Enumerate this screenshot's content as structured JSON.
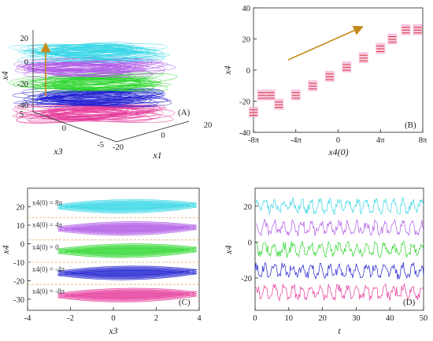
{
  "chart_data": [
    {
      "panel": "(A)",
      "type": "scatter",
      "xlabel": "x1",
      "ylabel": "x3",
      "zlabel": "x4",
      "x_ticks": [
        "20",
        "0",
        "-20"
      ],
      "y_ticks": [
        "5",
        "0",
        "-5"
      ],
      "z_ticks": [
        "20",
        "0",
        "-20",
        "-40"
      ],
      "zlim": [
        -40,
        25
      ],
      "layer_levels": [
        -32,
        -20,
        -8,
        4,
        16
      ],
      "colors": [
        "#e6399a",
        "#1f1fd0",
        "#2ed62e",
        "#b05ae6",
        "#33d6e6"
      ]
    },
    {
      "panel": "(B)",
      "type": "scatter",
      "xlabel": "x4(0)",
      "ylabel": "x4",
      "x_ticks": [
        "-8π",
        "-4π",
        "0",
        "4π",
        "8π"
      ],
      "y_ticks": [
        "40",
        "20",
        "0",
        "-20",
        "-40"
      ],
      "xlim": [
        -25.13,
        25.13
      ],
      "ylim": [
        -40,
        40
      ],
      "cluster_x_fraction": [
        0.0,
        0.05,
        0.1,
        0.15,
        0.25,
        0.35,
        0.45,
        0.55,
        0.65,
        0.75,
        0.82,
        0.9,
        0.97
      ],
      "cluster_levels": [
        [
          -30,
          -24
        ],
        [
          -19,
          -13
        ],
        [
          -19,
          -13
        ],
        [
          -25,
          -19
        ],
        [
          -19,
          -13
        ],
        [
          -13,
          -7
        ],
        [
          -7,
          -1
        ],
        [
          -1,
          5
        ],
        [
          5,
          11
        ],
        [
          11,
          17
        ],
        [
          17,
          23
        ],
        [
          23,
          29
        ],
        [
          23,
          29
        ]
      ]
    },
    {
      "panel": "(C)",
      "type": "scatter",
      "xlabel": "x3",
      "ylabel": "x4",
      "x_ticks": [
        "-4",
        "-2",
        "0",
        "2",
        "4"
      ],
      "y_ticks": [
        "20",
        "10",
        "0",
        "-10",
        "-20",
        "-30"
      ],
      "xlim": [
        -4,
        4
      ],
      "ylim": [
        -36,
        30
      ],
      "series": [
        {
          "name": "x4(0) = 8π",
          "y_center": 20,
          "color": "#33d6e6"
        },
        {
          "name": "x4(0) = 4π",
          "y_center": 8,
          "color": "#b05ae6"
        },
        {
          "name": "x4(0) = 0",
          "y_center": -4,
          "color": "#2ed62e"
        },
        {
          "name": "x4(0) = -4π",
          "y_center": -16,
          "color": "#1f1fd0"
        },
        {
          "name": "x4(0) = -8π",
          "y_center": -28,
          "color": "#e6399a"
        }
      ]
    },
    {
      "panel": "(D)",
      "type": "line",
      "xlabel": "t",
      "ylabel": "x4",
      "x_ticks": [
        "0",
        "10",
        "20",
        "30",
        "40",
        "50"
      ],
      "y_ticks": [
        "20",
        "0",
        "-20"
      ],
      "xlim": [
        0,
        50
      ],
      "ylim": [
        -38,
        30
      ],
      "series": [
        {
          "y_center": 20,
          "color": "#33d6e6"
        },
        {
          "y_center": 8,
          "color": "#b05ae6"
        },
        {
          "y_center": -4,
          "color": "#2ed62e"
        },
        {
          "y_center": -16,
          "color": "#1f1fd0"
        },
        {
          "y_center": -28,
          "color": "#e6399a"
        }
      ]
    }
  ]
}
